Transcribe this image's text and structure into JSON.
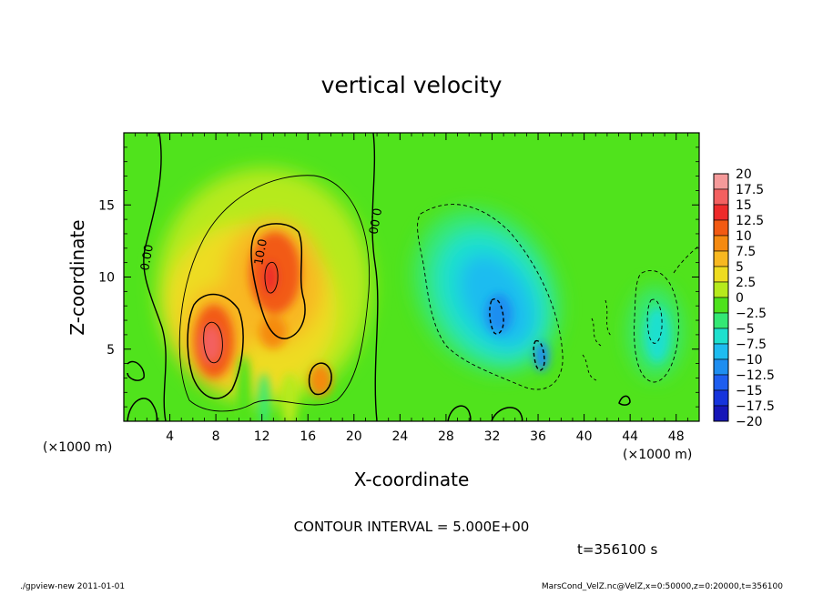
{
  "chart_data": {
    "type": "heatmap",
    "title": "vertical velocity",
    "xlabel": "X-coordinate",
    "ylabel": "Z-coordinate",
    "x_unit_left": "(×1000 m)",
    "x_unit_right": "(×1000 m)",
    "xlim": [
      0,
      50
    ],
    "ylim": [
      0,
      20
    ],
    "x_ticks": [
      4,
      8,
      12,
      16,
      20,
      24,
      28,
      32,
      36,
      40,
      44,
      48
    ],
    "y_ticks": [
      5,
      10,
      15
    ],
    "contour_labels": [
      "0.00",
      "10.0",
      "0.00"
    ],
    "colorbar": {
      "levels": [
        20,
        17.5,
        15,
        12.5,
        10,
        7.5,
        5,
        2.5,
        0,
        -2.5,
        -5,
        -7.5,
        -10,
        -12.5,
        -15,
        -17.5,
        -20
      ],
      "labels": [
        "20",
        "17.5",
        "15",
        "12.5",
        "10",
        "7.5",
        "5",
        "2.5",
        "0",
        "−2.5",
        "−5",
        "−7.5",
        "−10",
        "−12.5",
        "−15",
        "−17.5",
        "−20"
      ],
      "colors": [
        "#f59a9a",
        "#f36060",
        "#ee2a2a",
        "#f25a12",
        "#f58a10",
        "#f8b820",
        "#eedc20",
        "#b6ea1c",
        "#4ee21c",
        "#34e874",
        "#1ee0ce",
        "#1ebcf0",
        "#1e8ef0",
        "#1e5ef0",
        "#1634dc",
        "#1616b8",
        "#6a16b8"
      ]
    },
    "features": [
      {
        "kind": "updraft",
        "x": 13.5,
        "z": 8.5,
        "peak": 15
      },
      {
        "kind": "updraft",
        "x": 7.8,
        "z": 5.5,
        "peak": 17.5
      },
      {
        "kind": "downdraft",
        "x": 32.5,
        "z": 7.5,
        "peak": -12.5
      }
    ],
    "contour_interval_text": "CONTOUR INTERVAL = 5.000E+00",
    "time_text": "t=356100 s"
  },
  "footer": {
    "left": "./gpview-new   2011-01-01",
    "right": "MarsCond_VelZ.nc@VelZ,x=0:50000,z=0:20000,t=356100"
  }
}
